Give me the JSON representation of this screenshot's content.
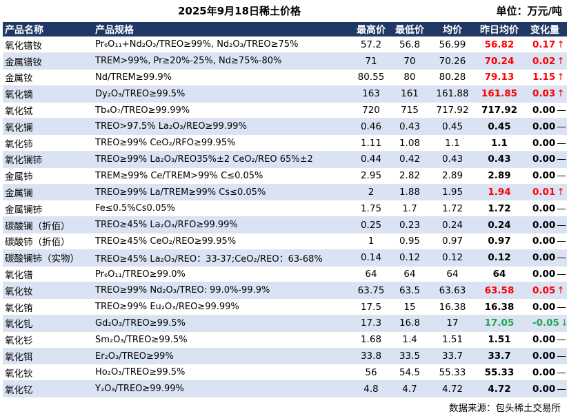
{
  "header": {
    "title": "2025年9月18日稀土价格",
    "unit": "单位：万元/吨"
  },
  "columns": [
    "产品名称",
    "产品规格",
    "最高价",
    "最低价",
    "均价",
    "昨日均价",
    "变化量"
  ],
  "colors": {
    "header_bg": "#1f3864",
    "band": "#dae3f3",
    "up": "#ff0000",
    "down": "#21a843"
  },
  "rows": [
    {
      "name": "氧化镨钕",
      "spec": "Pr₆O₁₁+Nd₂O₃/TREO≥99%, Nd₂O₃/TREO≥75%",
      "high": "57.2",
      "low": "56.8",
      "avg": "56.99",
      "yesterday": "56.82",
      "change": "0.17",
      "trend": "up",
      "arrow": "↑"
    },
    {
      "name": "金属镨钕",
      "spec": "TREM>99%, Pr≥20%-25%, Nd≥75%-80%",
      "high": "71",
      "low": "70",
      "avg": "70.26",
      "yesterday": "70.24",
      "change": "0.02",
      "trend": "up",
      "arrow": "↑"
    },
    {
      "name": "金属钕",
      "spec": "Nd/TREM≥99.9%",
      "high": "80.55",
      "low": "80",
      "avg": "80.28",
      "yesterday": "79.13",
      "change": "1.15",
      "trend": "up",
      "arrow": "↑"
    },
    {
      "name": "氧化镝",
      "spec": "Dy₂O₃/TREO≥99.5%",
      "high": "163",
      "low": "161",
      "avg": "161.88",
      "yesterday": "161.85",
      "change": "0.03",
      "trend": "up",
      "arrow": "↑"
    },
    {
      "name": "氧化铽",
      "spec": "Tb₄O₇/TREO≥99.99%",
      "high": "720",
      "low": "715",
      "avg": "717.92",
      "yesterday": "717.92",
      "change": "0.00",
      "trend": "flat",
      "arrow": "—"
    },
    {
      "name": "氧化镧",
      "spec": "TREO>97.5% La₂O₃/REO≥99.99%",
      "high": "0.46",
      "low": "0.43",
      "avg": "0.45",
      "yesterday": "0.45",
      "change": "0.00",
      "trend": "flat",
      "arrow": "—"
    },
    {
      "name": "氧化铈",
      "spec": "TREO≥99% CeO₂/RFO≥99.95%",
      "high": "1.11",
      "low": "1.08",
      "avg": "1.1",
      "yesterday": "1.1",
      "change": "0.00",
      "trend": "flat",
      "arrow": "—"
    },
    {
      "name": "氧化镧铈",
      "spec": "TREO≥99% La₂O₃/REO35%±2 CeO₂/REO 65%±2",
      "high": "0.44",
      "low": "0.42",
      "avg": "0.43",
      "yesterday": "0.43",
      "change": "0.00",
      "trend": "flat",
      "arrow": "—"
    },
    {
      "name": "金属铈",
      "spec": "TREM≥99% Ce/TREM>99% C≤0.05%",
      "high": "2.95",
      "low": "2.82",
      "avg": "2.89",
      "yesterday": "2.89",
      "change": "0.00",
      "trend": "flat",
      "arrow": "—"
    },
    {
      "name": "金属镧",
      "spec": "TREO≥99% La/TREM≥99% Cs≤0.05%",
      "high": "2",
      "low": "1.88",
      "avg": "1.95",
      "yesterday": "1.94",
      "change": "0.01",
      "trend": "up",
      "arrow": "↑"
    },
    {
      "name": "金属镧铈",
      "spec": "Fe≤0.5%Cs0.05%",
      "high": "1.75",
      "low": "1.7",
      "avg": "1.72",
      "yesterday": "1.72",
      "change": "0.00",
      "trend": "flat",
      "arrow": "—"
    },
    {
      "name": "碳酸镧（折佰）",
      "spec": "TREO≥45% La₂O₃/RFO≥99.99%",
      "high": "0.25",
      "low": "0.23",
      "avg": "0.24",
      "yesterday": "0.24",
      "change": "0.00",
      "trend": "flat",
      "arrow": "—"
    },
    {
      "name": "碳酸铈（折佰）",
      "spec": "TREO≥45% CeO₂/REO≥99.95%",
      "high": "1",
      "low": "0.95",
      "avg": "0.97",
      "yesterday": "0.97",
      "change": "0.00",
      "trend": "flat",
      "arrow": "—"
    },
    {
      "name": "碳酸镧铈（实物）",
      "spec": "TREO≥45% La₂O₃/REO：33-37;CeO₂/REO：63-68%",
      "high": "0.14",
      "low": "0.12",
      "avg": "0.12",
      "yesterday": "0.12",
      "change": "0.00",
      "trend": "flat",
      "arrow": "—"
    },
    {
      "name": "氧化镨",
      "spec": "Pr₆O₁₁/TREO≥99.0%",
      "high": "64",
      "low": "64",
      "avg": "64",
      "yesterday": "64",
      "change": "0.00",
      "trend": "flat",
      "arrow": "—"
    },
    {
      "name": "氧化钕",
      "spec": "TREO≥99% Nd₂O₃/TREO: 99.0%-99.9%",
      "high": "63.75",
      "low": "63.5",
      "avg": "63.63",
      "yesterday": "63.58",
      "change": "0.05",
      "trend": "up",
      "arrow": "↑"
    },
    {
      "name": "氧化铕",
      "spec": "TREO≥99% Eu₂O₃/REO≥99.99%",
      "high": "17.5",
      "low": "15",
      "avg": "16.38",
      "yesterday": "16.38",
      "change": "0.00",
      "trend": "flat",
      "arrow": "—"
    },
    {
      "name": "氧化钆",
      "spec": "Gd₂O₃/TREO≥99.5%",
      "high": "17.3",
      "low": "16.8",
      "avg": "17",
      "yesterday": "17.05",
      "change": "-0.05",
      "trend": "down",
      "arrow": "↓"
    },
    {
      "name": "氧化钐",
      "spec": "Sm₂O₃/TREO≥99.5%",
      "high": "1.68",
      "low": "1.4",
      "avg": "1.51",
      "yesterday": "1.51",
      "change": "0.00",
      "trend": "flat",
      "arrow": "—"
    },
    {
      "name": "氧化铒",
      "spec": "Er₂O₃/TREO≥99%",
      "high": "33.8",
      "low": "33.5",
      "avg": "33.7",
      "yesterday": "33.7",
      "change": "0.00",
      "trend": "flat",
      "arrow": "—"
    },
    {
      "name": "氧化钬",
      "spec": "Ho₂O₃/TREO≥99.5%",
      "high": "56",
      "low": "54.5",
      "avg": "55.33",
      "yesterday": "55.33",
      "change": "0.00",
      "trend": "flat",
      "arrow": "—"
    },
    {
      "name": "氧化钇",
      "spec": "Y₂O₃/TREO≥99.99%",
      "high": "4.8",
      "low": "4.7",
      "avg": "4.72",
      "yesterday": "4.72",
      "change": "0.00",
      "trend": "flat",
      "arrow": "—"
    }
  ],
  "footer": {
    "source": "数据来源：包头稀土交易所"
  }
}
